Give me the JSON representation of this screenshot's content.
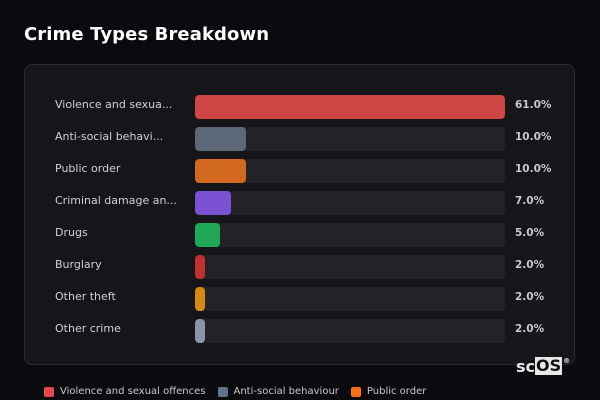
{
  "header": {
    "title": "Crime Types Breakdown"
  },
  "chart_data": {
    "type": "bar",
    "orientation": "horizontal",
    "title": "Crime Types Breakdown",
    "categories": [
      "Violence and sexual offences",
      "Anti-social behaviour",
      "Public order",
      "Criminal damage and arson",
      "Drugs",
      "Burglary",
      "Other theft",
      "Other crime"
    ],
    "display_labels": [
      "Violence and sexua...",
      "Anti-social behavi...",
      "Public order",
      "Criminal damage an...",
      "Drugs",
      "Burglary",
      "Other theft",
      "Other crime"
    ],
    "values": [
      61.0,
      10.0,
      10.0,
      7.0,
      5.0,
      2.0,
      2.0,
      2.0
    ],
    "value_labels": [
      "61.0%",
      "10.0%",
      "10.0%",
      "7.0%",
      "5.0%",
      "2.0%",
      "2.0%",
      "2.0%"
    ],
    "colors": [
      "#d04545",
      "#5c6878",
      "#d2691e",
      "#7b52d4",
      "#21a857",
      "#c0302f",
      "#d68910",
      "#8a94a6"
    ],
    "xlabel": "",
    "ylabel": "",
    "xlim": [
      0,
      61
    ],
    "grid": false,
    "legend": {
      "position": "bottom",
      "entries": [
        "Violence and sexual offences",
        "Anti-social behaviour",
        "Public order"
      ]
    }
  },
  "legend": {
    "items": [
      {
        "label": "Violence and sexual offences",
        "color": "#e5484d"
      },
      {
        "label": "Anti-social behaviour",
        "color": "#64748b"
      },
      {
        "label": "Public order",
        "color": "#f97316"
      }
    ]
  },
  "watermark": {
    "text_sc": "sc",
    "text_os": "OS",
    "reg": "®"
  }
}
